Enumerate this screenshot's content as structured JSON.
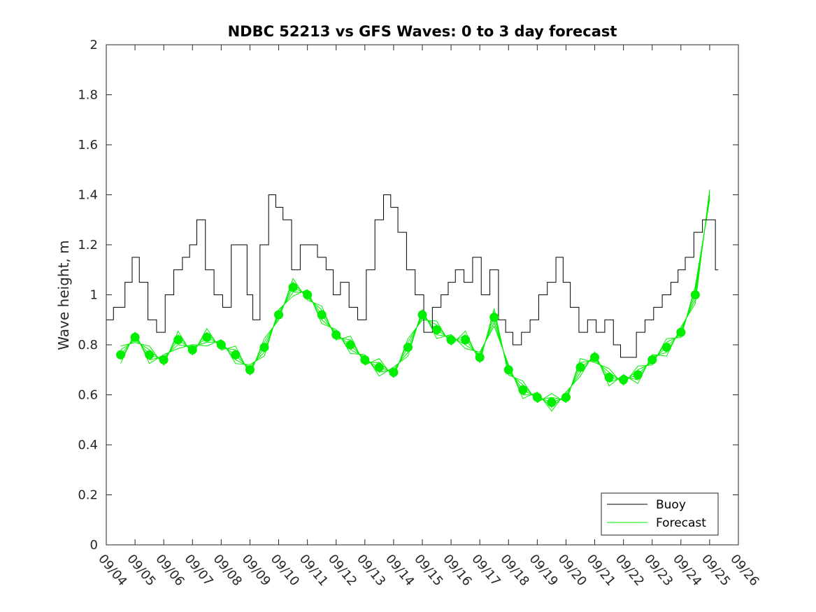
{
  "chart_data": {
    "type": "line",
    "title": "NDBC 52213 vs GFS Waves: 0 to 3 day forecast",
    "xlabel": "",
    "ylabel": "Wave height, m",
    "ylim": [
      0,
      2
    ],
    "yticks": [
      "0",
      "0.2",
      "0.4",
      "0.6",
      "0.8",
      "1",
      "1.2",
      "1.4",
      "1.6",
      "1.8",
      "2"
    ],
    "xlim": [
      0,
      22
    ],
    "xtick_labels": [
      "09/04",
      "09/05",
      "09/06",
      "09/07",
      "09/08",
      "09/09",
      "09/10",
      "09/11",
      "09/12",
      "09/13",
      "09/14",
      "09/15",
      "09/16",
      "09/17",
      "09/18",
      "09/19",
      "09/20",
      "09/21",
      "09/22",
      "09/23",
      "09/24",
      "09/25",
      "09/26"
    ],
    "legend": {
      "placement": "bottom-right",
      "entries": [
        "Buoy",
        "Forecast"
      ]
    },
    "colors": {
      "buoy": "#000000",
      "forecast": "#00ee00",
      "axes": "#262626"
    },
    "series": [
      {
        "name": "Buoy",
        "x": [
          0.0,
          0.5,
          0.8,
          1.0,
          1.3,
          1.6,
          1.9,
          2.2,
          2.5,
          2.8,
          3.0,
          3.3,
          3.6,
          3.9,
          4.2,
          4.5,
          4.8,
          5.0,
          5.2,
          5.5,
          5.8,
          6.0,
          6.3,
          6.6,
          6.9,
          7.2,
          7.5,
          7.8,
          8.0,
          8.3,
          8.6,
          8.9,
          9.2,
          9.5,
          9.8,
          10.0,
          10.3,
          10.6,
          10.9,
          11.2,
          11.5,
          11.8,
          12.0,
          12.3,
          12.6,
          12.9,
          13.2,
          13.5,
          13.8,
          14.0,
          14.3,
          14.6,
          14.9,
          15.2,
          15.5,
          15.8,
          16.0,
          16.3,
          16.6,
          16.9,
          17.2,
          17.5,
          17.8,
          18.0,
          18.3,
          18.6,
          18.9,
          19.2,
          19.5,
          19.8,
          20.0,
          20.3,
          20.6,
          20.9,
          21.1,
          21.3
        ],
        "values": [
          0.9,
          0.95,
          1.05,
          1.15,
          1.05,
          0.9,
          0.85,
          1.0,
          1.1,
          1.15,
          1.2,
          1.3,
          1.1,
          1.0,
          0.95,
          1.2,
          1.2,
          1.0,
          0.9,
          1.2,
          1.4,
          1.35,
          1.3,
          1.1,
          1.2,
          1.2,
          1.15,
          1.1,
          1.0,
          1.05,
          0.95,
          0.9,
          1.1,
          1.3,
          1.4,
          1.35,
          1.25,
          1.1,
          1.0,
          0.85,
          0.95,
          1.0,
          1.05,
          1.1,
          1.05,
          1.15,
          1.0,
          1.1,
          0.9,
          0.85,
          0.8,
          0.85,
          0.9,
          1.0,
          1.05,
          1.15,
          1.05,
          0.95,
          0.85,
          0.9,
          0.85,
          0.9,
          0.8,
          0.75,
          0.75,
          0.85,
          0.9,
          0.95,
          1.0,
          1.05,
          1.1,
          1.15,
          1.25,
          1.3,
          1.3,
          1.1
        ]
      },
      {
        "name": "Forecast",
        "x": [
          0.5,
          1.0,
          1.5,
          2.0,
          2.5,
          3.0,
          3.5,
          4.0,
          4.5,
          5.0,
          5.5,
          6.0,
          6.5,
          7.0,
          7.5,
          8.0,
          8.5,
          9.0,
          9.5,
          10.0,
          10.5,
          11.0,
          11.5,
          12.0,
          12.5,
          13.0,
          13.5,
          14.0,
          14.5,
          15.0,
          15.5,
          16.0,
          16.5,
          17.0,
          17.5,
          18.0,
          18.5,
          19.0,
          19.5,
          20.0,
          20.5,
          21.0
        ],
        "values": [
          0.76,
          0.83,
          0.76,
          0.74,
          0.82,
          0.78,
          0.83,
          0.8,
          0.76,
          0.7,
          0.79,
          0.92,
          1.03,
          1.0,
          0.92,
          0.84,
          0.8,
          0.74,
          0.71,
          0.69,
          0.79,
          0.92,
          0.86,
          0.82,
          0.82,
          0.75,
          0.91,
          0.7,
          0.62,
          0.59,
          0.57,
          0.59,
          0.71,
          0.75,
          0.67,
          0.66,
          0.68,
          0.74,
          0.79,
          0.85,
          1.0,
          1.4
        ]
      }
    ]
  }
}
